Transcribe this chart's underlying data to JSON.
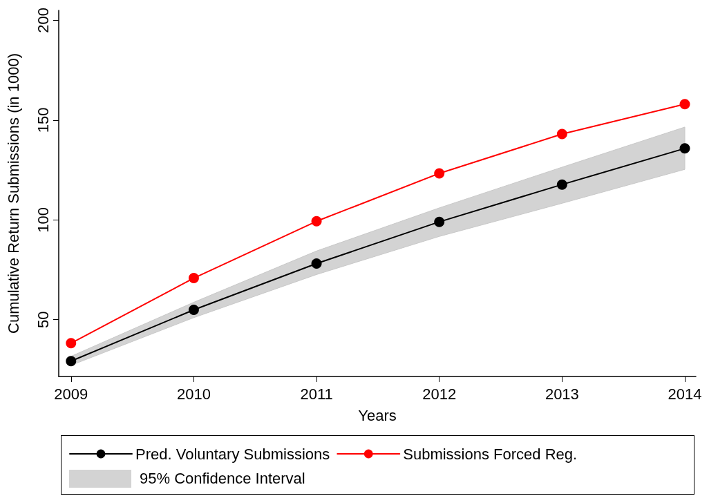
{
  "chart_data": {
    "type": "line",
    "xlabel": "Years",
    "ylabel": "Cumulative Return Submissions (in 1000)",
    "x": [
      2009,
      2010,
      2011,
      2012,
      2013,
      2014
    ],
    "series": [
      {
        "name": "Pred. Voluntary Submissions",
        "color": "#000000",
        "values": [
          29.2,
          54.9,
          78.1,
          99,
          117.7,
          135.8
        ],
        "lower": [
          27.1,
          51,
          72.6,
          91.7,
          108.3,
          125.3
        ],
        "upper": [
          31.6,
          58.7,
          84.4,
          106,
          126.4,
          146.5
        ]
      },
      {
        "name": "Submissions Forced Reg.",
        "color": "#ff0000",
        "values": [
          38.2,
          70.8,
          99.3,
          123.3,
          143,
          158
        ]
      }
    ],
    "annotations": [
      "95% Confidence Interval"
    ],
    "xlim": [
      2008.9,
      2014.09
    ],
    "xticks": [
      2009,
      2010,
      2011,
      2012,
      2013,
      2014
    ],
    "ylim": [
      21.5,
      205
    ],
    "yticks": [
      50,
      100,
      150,
      200
    ],
    "grid": false,
    "legend": "bottom",
    "marker": "circle",
    "line_style": "solid"
  }
}
